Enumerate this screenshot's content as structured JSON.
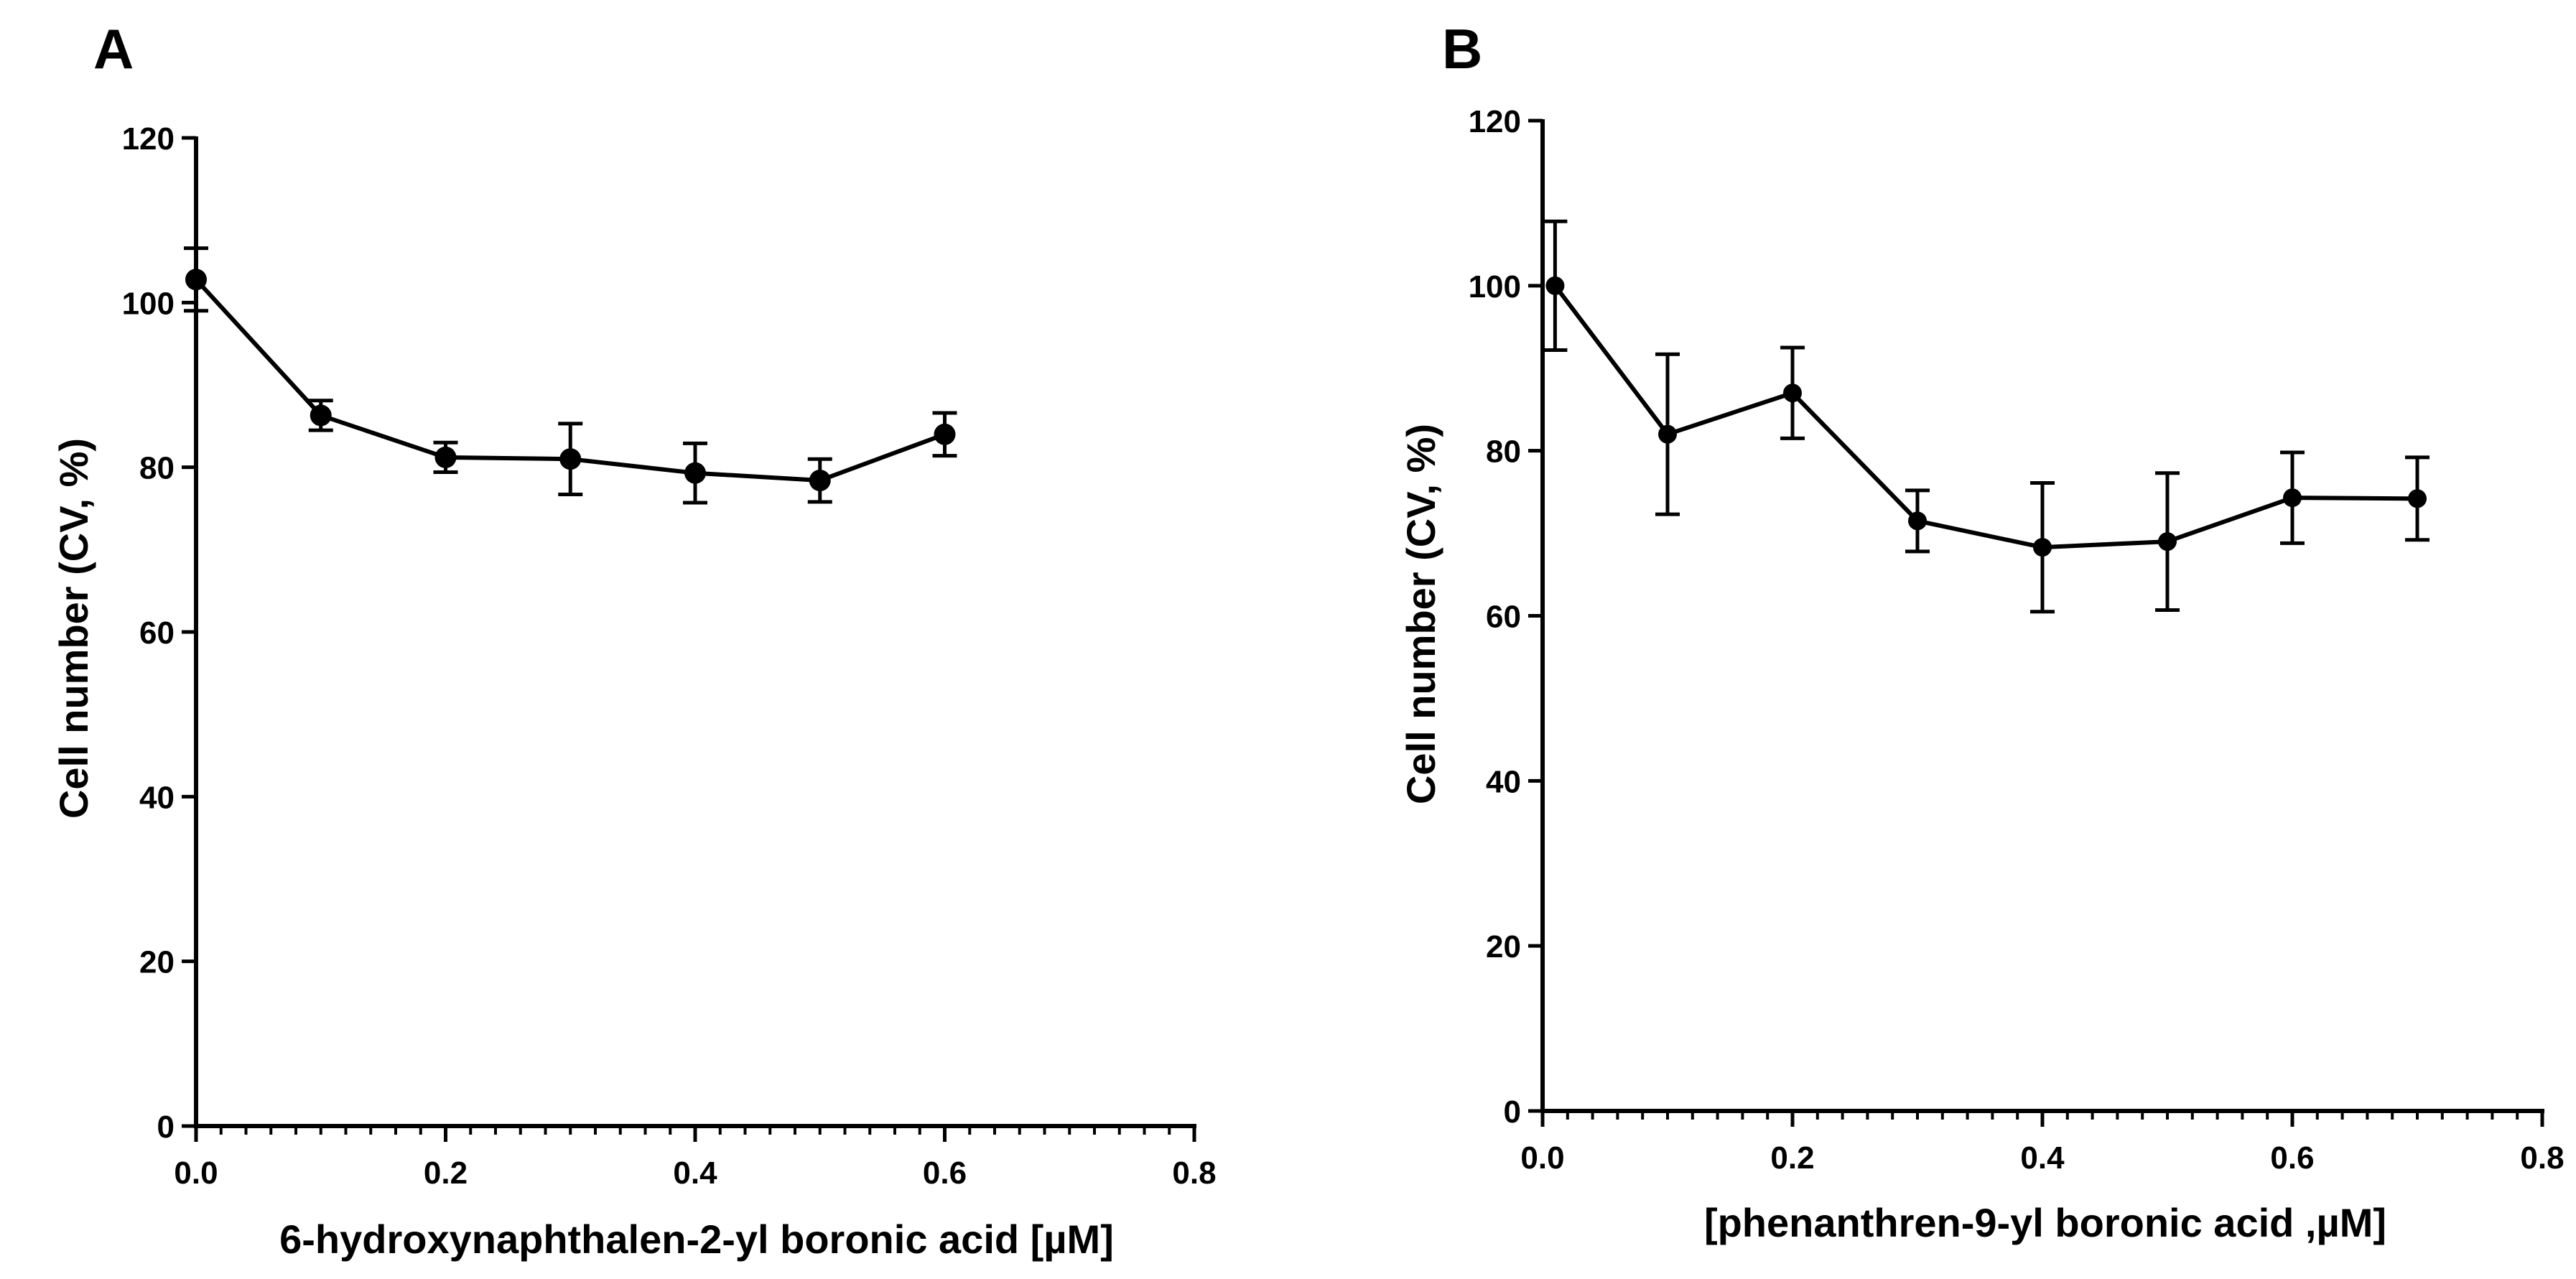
{
  "chart_data": [
    {
      "type": "line",
      "panel_label": "A",
      "xlabel": "6-hydroxynaphthalen-2-yl boronic acid [µM]",
      "ylabel": "Cell number (CV, %)",
      "xlim": [
        0,
        0.8
      ],
      "ylim": [
        0,
        120
      ],
      "x_ticks": [
        "0.0",
        "0.2",
        "0.4",
        "0.6",
        "0.8"
      ],
      "y_ticks": [
        "0",
        "20",
        "40",
        "60",
        "80",
        "100",
        "120"
      ],
      "grid": false,
      "series": [
        {
          "x": [
            0.0,
            0.1,
            0.2,
            0.3,
            0.4,
            0.5,
            0.6
          ],
          "y": [
            102.8,
            86.3,
            81.2,
            81.0,
            79.3,
            78.4,
            84.0
          ],
          "error": [
            3.8,
            1.8,
            1.8,
            4.3,
            3.6,
            2.6,
            2.6
          ]
        }
      ]
    },
    {
      "type": "line",
      "panel_label": "B",
      "xlabel": "[phenanthren-9-yl boronic acid ,µM]",
      "ylabel": "Cell number (CV, %)",
      "xlim": [
        0,
        0.8
      ],
      "ylim": [
        0,
        120
      ],
      "x_ticks": [
        "0.0",
        "0.2",
        "0.4",
        "0.6",
        "0.8"
      ],
      "y_ticks": [
        "0",
        "20",
        "40",
        "60",
        "80",
        "100",
        "120"
      ],
      "grid": false,
      "series": [
        {
          "x": [
            0.01,
            0.1,
            0.2,
            0.3,
            0.4,
            0.5,
            0.6,
            0.7
          ],
          "y": [
            100.0,
            82.0,
            87.0,
            71.5,
            68.3,
            69.0,
            74.3,
            74.2
          ],
          "error": [
            7.8,
            9.7,
            5.5,
            3.7,
            7.8,
            8.3,
            5.5,
            5.0
          ]
        }
      ]
    }
  ]
}
